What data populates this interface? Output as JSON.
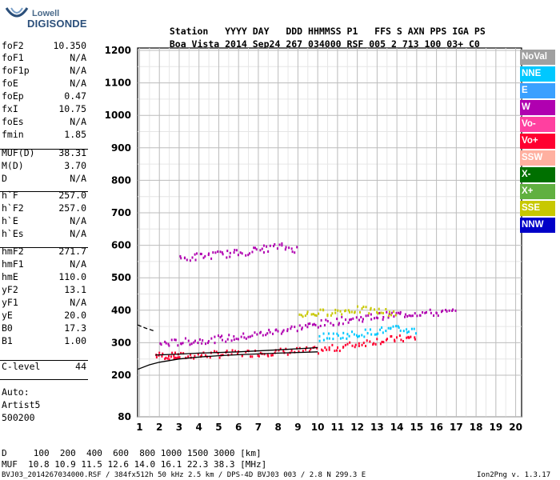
{
  "logo": {
    "line1": "Lowell",
    "line2": "DIGISONDE"
  },
  "header": {
    "labels": [
      "Station",
      "YYYY",
      "DAY",
      "DDD",
      "HHMMSS",
      "P1",
      "FFS",
      "S",
      "AXN",
      "PPS",
      "IGA",
      "PS"
    ],
    "values": [
      "Boa Vista",
      "2014",
      "Sep24",
      "267",
      "034000",
      "RSF",
      "005",
      "2",
      "713",
      "100",
      "03+",
      "C0"
    ]
  },
  "params": [
    {
      "k": "foF2",
      "v": "10.350"
    },
    {
      "k": "foF1",
      "v": "N/A"
    },
    {
      "k": "foF1p",
      "v": "N/A"
    },
    {
      "k": "foE",
      "v": "N/A"
    },
    {
      "k": "foEp",
      "v": "0.47"
    },
    {
      "k": "fxI",
      "v": "10.75"
    },
    {
      "k": "foEs",
      "v": "N/A"
    },
    {
      "k": "fmin",
      "v": "1.85"
    },
    {
      "k": "MUF(D)",
      "v": "38.31"
    },
    {
      "k": "M(D)",
      "v": "3.70"
    },
    {
      "k": "D",
      "v": "N/A"
    },
    {
      "k": "h`F",
      "v": "257.0"
    },
    {
      "k": "h`F2",
      "v": "257.0"
    },
    {
      "k": "h`E",
      "v": "N/A"
    },
    {
      "k": "h`Es",
      "v": "N/A"
    },
    {
      "k": "hmF2",
      "v": "271.7"
    },
    {
      "k": "hmF1",
      "v": "N/A"
    },
    {
      "k": "hmE",
      "v": "110.0"
    },
    {
      "k": "yF2",
      "v": "13.1"
    },
    {
      "k": "yF1",
      "v": "N/A"
    },
    {
      "k": "yE",
      "v": "20.0"
    },
    {
      "k": "B0",
      "v": "17.3"
    },
    {
      "k": "B1",
      "v": "1.00"
    },
    {
      "k": "C-level",
      "v": "44"
    }
  ],
  "autoscale": {
    "line1": "Auto:",
    "line2": "Artist5",
    "line3": "500200"
  },
  "legend": [
    {
      "label": "NoVal",
      "color": "#a0a0a0"
    },
    {
      "label": "NNE",
      "color": "#00c8ff"
    },
    {
      "label": "E",
      "color": "#3aa0ff"
    },
    {
      "label": "W",
      "color": "#b000b0"
    },
    {
      "label": "Vo-",
      "color": "#ff40a0"
    },
    {
      "label": "Vo+",
      "color": "#ff0030"
    },
    {
      "label": "SSW",
      "color": "#ffb0a0"
    },
    {
      "label": "X-",
      "color": "#007000"
    },
    {
      "label": "X+",
      "color": "#60b040"
    },
    {
      "label": "SSE",
      "color": "#c8c800"
    },
    {
      "label": "NNW",
      "color": "#0000c8"
    }
  ],
  "footer": {
    "d_label": "D",
    "d_values": [
      "100",
      "200",
      "400",
      "600",
      "800",
      "1000",
      "1500",
      "3000"
    ],
    "d_unit": "[km]",
    "muf_label": "MUF",
    "muf_values": [
      "10.8",
      "10.9",
      "11.5",
      "12.6",
      "14.0",
      "16.1",
      "22.3",
      "38.3"
    ],
    "muf_unit": "[MHz]",
    "file_info": "BVJ03_2014267034000.RSF / 384fx512h 50 kHz 2.5 km / DPS-4D BVJ03 003 / 2.8 N 299.3 E",
    "version": "Ion2Png v. 1.3.17"
  },
  "chart_data": {
    "type": "scatter",
    "x_ticks": [
      1,
      2,
      3,
      4,
      5,
      6,
      7,
      8,
      9,
      10,
      11,
      12,
      13,
      14,
      15,
      16,
      17,
      18,
      19,
      20
    ],
    "y_ticks": [
      80,
      200,
      300,
      400,
      500,
      600,
      700,
      800,
      900,
      1000,
      1100,
      1200
    ],
    "x_tick_labels": [
      "1",
      "2",
      "3",
      "4",
      "5",
      "6",
      "7",
      "8",
      "9",
      "10",
      "11",
      "12",
      "13",
      "14",
      "15",
      "16",
      "17",
      "18",
      "19",
      "20"
    ],
    "y_tick_labels": [
      "80",
      "200",
      "300",
      "400",
      "500",
      "600",
      "700",
      "800",
      "900",
      "1000",
      "1100",
      "1200"
    ],
    "xlim": [
      0.9,
      20.3
    ],
    "ylim": [
      80,
      1210
    ],
    "grid": true,
    "legend_position": "right",
    "traces": [
      {
        "name": "F-trace O",
        "color": "#ff0030",
        "points": [
          [
            1.8,
            265
          ],
          [
            2.5,
            262
          ],
          [
            3,
            262
          ],
          [
            4,
            265
          ],
          [
            5,
            268
          ],
          [
            6,
            270
          ],
          [
            7,
            272
          ],
          [
            8,
            275
          ],
          [
            9,
            278
          ],
          [
            10,
            280
          ],
          [
            11,
            288
          ],
          [
            12,
            300
          ],
          [
            13,
            310
          ],
          [
            14,
            315
          ],
          [
            15,
            318
          ]
        ]
      },
      {
        "name": "F-trace W",
        "color": "#b000b0",
        "points": [
          [
            2,
            300
          ],
          [
            3,
            305
          ],
          [
            4,
            310
          ],
          [
            5,
            315
          ],
          [
            6,
            320
          ],
          [
            7,
            330
          ],
          [
            8,
            340
          ],
          [
            9,
            350
          ],
          [
            10,
            360
          ],
          [
            11,
            370
          ],
          [
            12,
            378
          ],
          [
            13,
            385
          ],
          [
            14,
            390
          ],
          [
            15,
            395
          ],
          [
            16,
            395
          ],
          [
            17,
            398
          ]
        ]
      },
      {
        "name": "F-trace NNE",
        "color": "#00c8ff",
        "points": [
          [
            10,
            320
          ],
          [
            11,
            325
          ],
          [
            12,
            330
          ],
          [
            13,
            340
          ],
          [
            14,
            345
          ],
          [
            15,
            340
          ]
        ]
      },
      {
        "name": "F-trace SSE",
        "color": "#c8c800",
        "points": [
          [
            9,
            390
          ],
          [
            10,
            395
          ],
          [
            11,
            400
          ],
          [
            12,
            405
          ],
          [
            13,
            400
          ],
          [
            14,
            395
          ]
        ]
      },
      {
        "name": "Spread F",
        "color": "#b000b0",
        "points": [
          [
            3,
            560
          ],
          [
            4,
            570
          ],
          [
            5,
            575
          ],
          [
            6,
            580
          ],
          [
            7,
            590
          ],
          [
            8,
            600
          ],
          [
            9,
            590
          ]
        ]
      }
    ],
    "profile_curves": [
      {
        "name": "virtual-height fit",
        "points": [
          [
            1.8,
            262
          ],
          [
            3,
            265
          ],
          [
            4,
            268
          ],
          [
            6,
            272
          ],
          [
            8,
            278
          ],
          [
            10,
            285
          ]
        ]
      },
      {
        "name": "true-height profile",
        "points": [
          [
            0.9,
            218
          ],
          [
            1.5,
            232
          ],
          [
            2,
            240
          ],
          [
            3,
            250
          ],
          [
            4,
            256
          ],
          [
            5,
            260
          ],
          [
            6,
            263
          ],
          [
            8,
            268
          ],
          [
            10,
            272
          ]
        ]
      },
      {
        "name": "extrapolation",
        "points": [
          [
            0.9,
            355
          ],
          [
            1.3,
            345
          ],
          [
            1.8,
            335
          ]
        ]
      }
    ]
  }
}
